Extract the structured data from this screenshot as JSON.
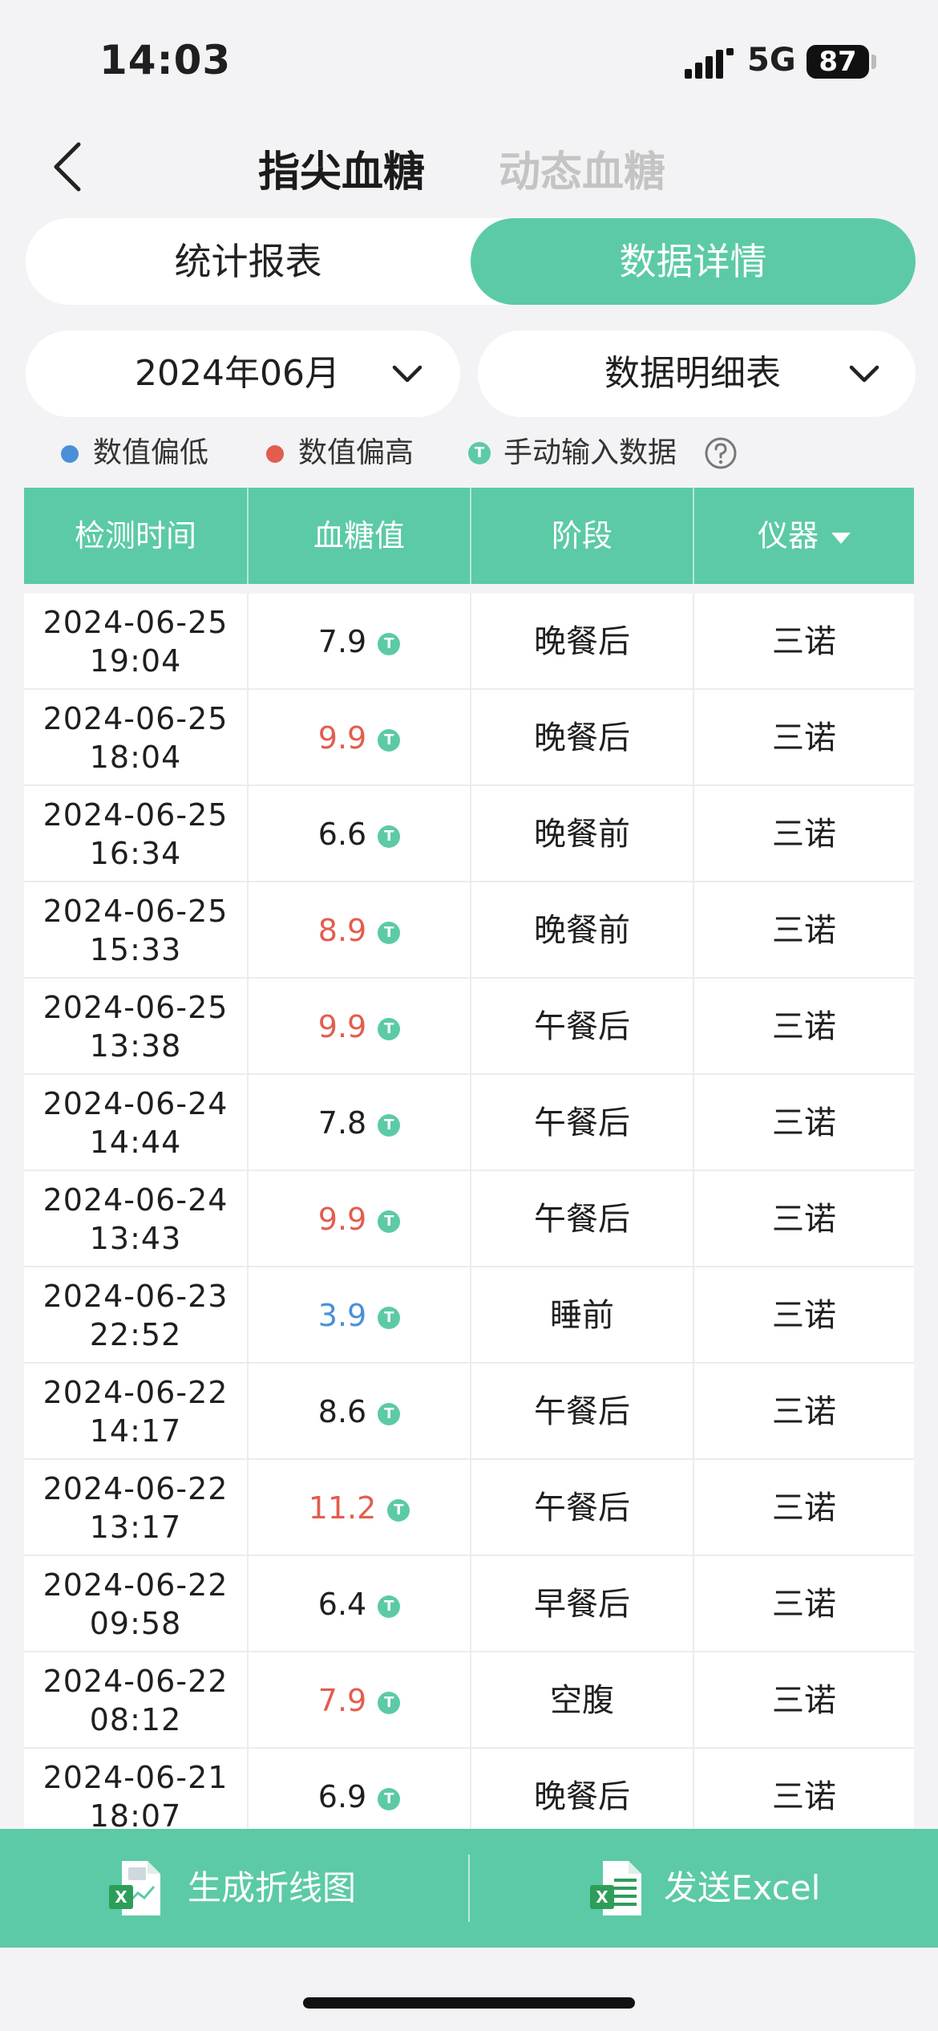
{
  "status_bar": {
    "time": "14:03",
    "network": "5G",
    "battery": "87"
  },
  "nav": {
    "tab_active": "指尖血糖",
    "tab_inactive": "动态血糖"
  },
  "segmented": {
    "left": "统计报表",
    "right": "数据详情"
  },
  "selectors": {
    "month": "2024年06月",
    "type": "数据明细表"
  },
  "legend": {
    "low": "数值偏低",
    "high": "数值偏高",
    "manual": "手动输入数据",
    "badge": "T"
  },
  "colors": {
    "accent": "#5ccaa6",
    "low": "#4a90d9",
    "high": "#e35d4f",
    "normal": "#1f1f1f"
  },
  "table": {
    "headers": [
      "检测时间",
      "血糖值",
      "阶段",
      "仪器"
    ],
    "rows": [
      {
        "date": "2024-06-25",
        "time": "19:04",
        "value": "7.9",
        "status": "normal",
        "stage": "晚餐后",
        "device": "三诺"
      },
      {
        "date": "2024-06-25",
        "time": "18:04",
        "value": "9.9",
        "status": "high",
        "stage": "晚餐后",
        "device": "三诺"
      },
      {
        "date": "2024-06-25",
        "time": "16:34",
        "value": "6.6",
        "status": "normal",
        "stage": "晚餐前",
        "device": "三诺"
      },
      {
        "date": "2024-06-25",
        "time": "15:33",
        "value": "8.9",
        "status": "high",
        "stage": "晚餐前",
        "device": "三诺"
      },
      {
        "date": "2024-06-25",
        "time": "13:38",
        "value": "9.9",
        "status": "high",
        "stage": "午餐后",
        "device": "三诺"
      },
      {
        "date": "2024-06-24",
        "time": "14:44",
        "value": "7.8",
        "status": "normal",
        "stage": "午餐后",
        "device": "三诺"
      },
      {
        "date": "2024-06-24",
        "time": "13:43",
        "value": "9.9",
        "status": "high",
        "stage": "午餐后",
        "device": "三诺"
      },
      {
        "date": "2024-06-23",
        "time": "22:52",
        "value": "3.9",
        "status": "low",
        "stage": "睡前",
        "device": "三诺"
      },
      {
        "date": "2024-06-22",
        "time": "14:17",
        "value": "8.6",
        "status": "normal",
        "stage": "午餐后",
        "device": "三诺"
      },
      {
        "date": "2024-06-22",
        "time": "13:17",
        "value": "11.2",
        "status": "high",
        "stage": "午餐后",
        "device": "三诺"
      },
      {
        "date": "2024-06-22",
        "time": "09:58",
        "value": "6.4",
        "status": "normal",
        "stage": "早餐后",
        "device": "三诺"
      },
      {
        "date": "2024-06-22",
        "time": "08:12",
        "value": "7.9",
        "status": "high",
        "stage": "空腹",
        "device": "三诺"
      },
      {
        "date": "2024-06-21",
        "time": "18:07",
        "value": "6.9",
        "status": "normal",
        "stage": "晚餐后",
        "device": "三诺"
      }
    ]
  },
  "bottom": {
    "left_label": "生成折线图",
    "right_label": "发送Excel"
  }
}
